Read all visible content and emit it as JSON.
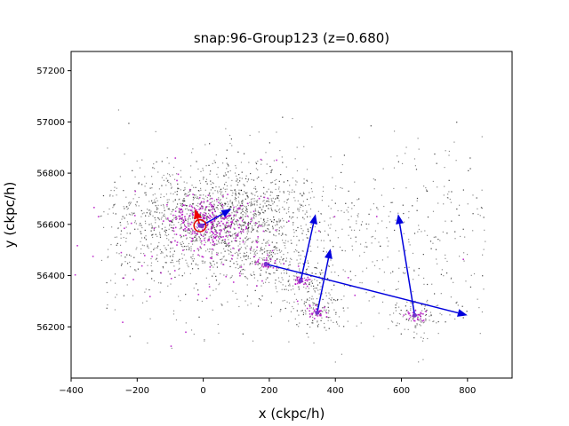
{
  "chart_data": {
    "type": "scatter",
    "title": "snap:96-Group123 (z=0.680)",
    "xlabel": "x (ckpc/h)",
    "ylabel": "y (ckpc/h)",
    "xlim": [
      -400,
      935
    ],
    "ylim": [
      56000,
      57275
    ],
    "xticks": [
      -400,
      -200,
      0,
      200,
      400,
      600,
      800
    ],
    "yticks": [
      56200,
      56400,
      56600,
      56800,
      57000,
      57200
    ],
    "grid": false,
    "legend": "none",
    "colors": {
      "particles": "#000000",
      "stars": "#b000c0",
      "vectors": "#0000dd",
      "center_vector": "#ee0000",
      "center_circle": "#dd0000",
      "subhalo_marker": "#7733cc"
    },
    "particle_distribution": {
      "count_dark": 3200,
      "count_stars": 450,
      "main_center": [
        60,
        56620
      ],
      "main_spread": [
        180,
        150
      ]
    },
    "center": {
      "position": [
        -10,
        56595
      ],
      "circle_radius_x": 18,
      "velocity_tip": [
        -25,
        56660
      ]
    },
    "subhalos": [
      {
        "position": [
          190,
          56445
        ],
        "velocity_tip": [
          800,
          56245
        ]
      },
      {
        "position": [
          640,
          56245
        ],
        "velocity_tip": [
          590,
          56640
        ]
      },
      {
        "position": [
          295,
          56380
        ],
        "velocity_tip": [
          340,
          56640
        ]
      },
      {
        "position": [
          345,
          56255
        ],
        "velocity_tip": [
          385,
          56505
        ]
      },
      {
        "position": [
          -5,
          56595
        ],
        "velocity_tip": [
          85,
          56660
        ]
      }
    ]
  }
}
